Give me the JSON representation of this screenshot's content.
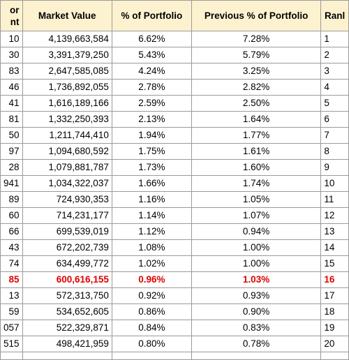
{
  "headers": [
    "or\nnt",
    "Market Value",
    "% of Portfolio",
    "Previous % of Portfolio",
    "Ranl"
  ],
  "rows": [
    {
      "id": "10",
      "market_value": "4,139,663,584",
      "pct": "6.62%",
      "prev_pct": "7.28%",
      "rank": "1"
    },
    {
      "id": "30",
      "market_value": "3,391,379,250",
      "pct": "5.43%",
      "prev_pct": "5.79%",
      "rank": "2"
    },
    {
      "id": "83",
      "market_value": "2,647,585,085",
      "pct": "4.24%",
      "prev_pct": "3.25%",
      "rank": "3"
    },
    {
      "id": "46",
      "market_value": "1,736,892,055",
      "pct": "2.78%",
      "prev_pct": "2.82%",
      "rank": "4"
    },
    {
      "id": "41",
      "market_value": "1,616,189,166",
      "pct": "2.59%",
      "prev_pct": "2.50%",
      "rank": "5"
    },
    {
      "id": "81",
      "market_value": "1,332,250,393",
      "pct": "2.13%",
      "prev_pct": "1.64%",
      "rank": "6"
    },
    {
      "id": "50",
      "market_value": "1,211,744,410",
      "pct": "1.94%",
      "prev_pct": "1.77%",
      "rank": "7"
    },
    {
      "id": "97",
      "market_value": "1,094,680,592",
      "pct": "1.75%",
      "prev_pct": "1.61%",
      "rank": "8"
    },
    {
      "id": "28",
      "market_value": "1,079,881,787",
      "pct": "1.73%",
      "prev_pct": "1.60%",
      "rank": "9"
    },
    {
      "id": "941",
      "market_value": "1,034,322,037",
      "pct": "1.66%",
      "prev_pct": "1.74%",
      "rank": "10"
    },
    {
      "id": "89",
      "market_value": "724,930,353",
      "pct": "1.16%",
      "prev_pct": "1.05%",
      "rank": "11"
    },
    {
      "id": "60",
      "market_value": "714,231,177",
      "pct": "1.14%",
      "prev_pct": "1.07%",
      "rank": "12"
    },
    {
      "id": "66",
      "market_value": "699,539,019",
      "pct": "1.12%",
      "prev_pct": "0.94%",
      "rank": "13"
    },
    {
      "id": "43",
      "market_value": "672,202,739",
      "pct": "1.08%",
      "prev_pct": "1.00%",
      "rank": "14"
    },
    {
      "id": "74",
      "market_value": "634,499,772",
      "pct": "1.02%",
      "prev_pct": "1.00%",
      "rank": "15"
    },
    {
      "id": "85",
      "market_value": "600,616,155",
      "pct": "0.96%",
      "prev_pct": "1.03%",
      "rank": "16",
      "highlight": true
    },
    {
      "id": "13",
      "market_value": "572,313,750",
      "pct": "0.92%",
      "prev_pct": "0.93%",
      "rank": "17"
    },
    {
      "id": "59",
      "market_value": "534,652,605",
      "pct": "0.86%",
      "prev_pct": "0.90%",
      "rank": "18"
    },
    {
      "id": "057",
      "market_value": "522,329,871",
      "pct": "0.84%",
      "prev_pct": "0.83%",
      "rank": "19"
    },
    {
      "id": "515",
      "market_value": "498,421,959",
      "pct": "0.80%",
      "prev_pct": "0.78%",
      "rank": "20"
    }
  ],
  "colors": {
    "header_bg": "#fdf2d0",
    "highlight_text": "#e00000",
    "grid_line": "#9a9a9a"
  }
}
